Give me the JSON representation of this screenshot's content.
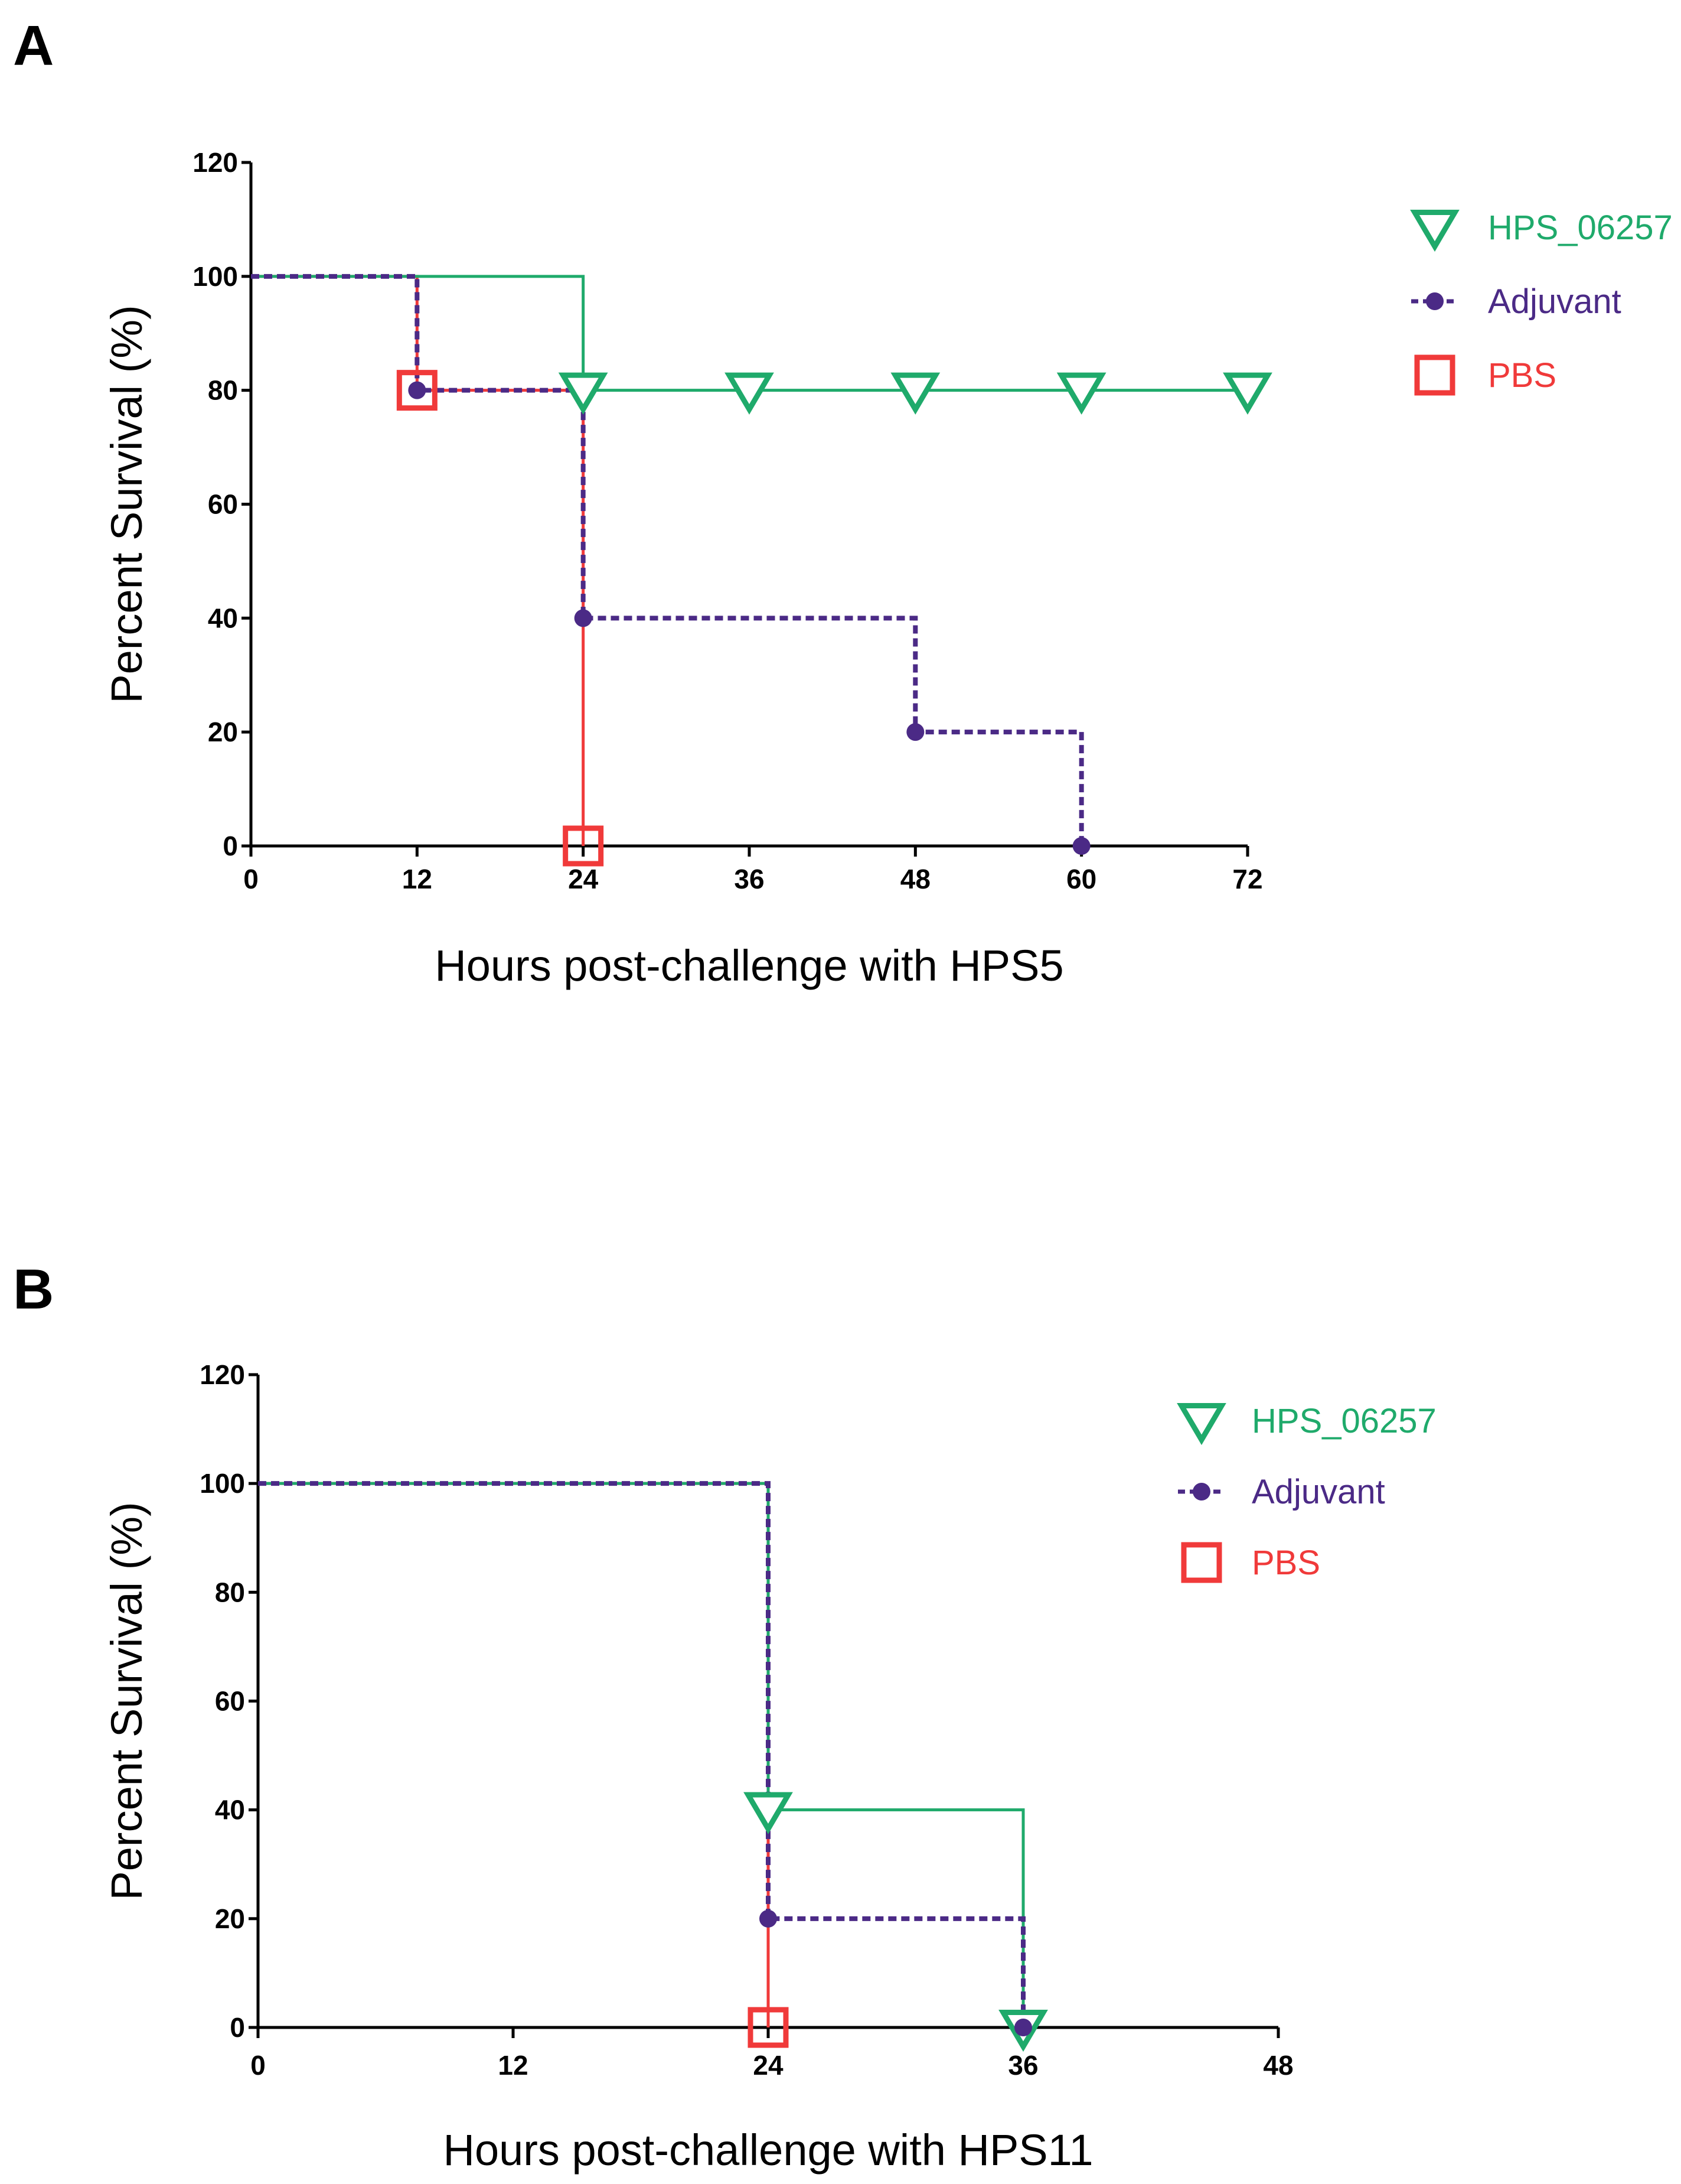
{
  "colors": {
    "hps_06257": "#1faa6b",
    "adjuvant": "#4b2a86",
    "pbs": "#f03a3a",
    "adjuvant_pbs_overlap": "#a0307a"
  },
  "chart_data": [
    {
      "panel": "A",
      "type": "line",
      "subtype": "kaplan-meier step",
      "xlabel": "Hours post-challenge with HPS5",
      "ylabel": "Percent Survival (%)",
      "xlim": [
        0,
        72
      ],
      "ylim": [
        0,
        120
      ],
      "xticks": [
        0,
        12,
        24,
        36,
        48,
        60,
        72
      ],
      "yticks": [
        0,
        20,
        40,
        60,
        80,
        100,
        120
      ],
      "legend_position": "top-right",
      "series": [
        {
          "name": "HPS_06257",
          "line_style": "solid",
          "marker": "triangle-down-open",
          "steps": [
            [
              0,
              100
            ],
            [
              24,
              80
            ],
            [
              72,
              80
            ]
          ],
          "markers": [
            [
              24,
              80
            ],
            [
              36,
              80
            ],
            [
              48,
              80
            ],
            [
              60,
              80
            ],
            [
              72,
              80
            ]
          ]
        },
        {
          "name": "Adjuvant",
          "line_style": "dashed",
          "marker": "circle-filled",
          "steps": [
            [
              0,
              100
            ],
            [
              12,
              80
            ],
            [
              24,
              40
            ],
            [
              48,
              20
            ],
            [
              60,
              0
            ]
          ],
          "markers": [
            [
              12,
              80
            ],
            [
              24,
              40
            ],
            [
              48,
              20
            ],
            [
              60,
              0
            ]
          ]
        },
        {
          "name": "PBS",
          "line_style": "solid",
          "marker": "square-open",
          "steps": [
            [
              0,
              100
            ],
            [
              12,
              80
            ],
            [
              24,
              0
            ]
          ],
          "markers": [
            [
              12,
              80
            ],
            [
              24,
              0
            ]
          ]
        }
      ]
    },
    {
      "panel": "B",
      "type": "line",
      "subtype": "kaplan-meier step",
      "xlabel": "Hours post-challenge with HPS11",
      "ylabel": "Percent Survival (%)",
      "xlim": [
        0,
        48
      ],
      "ylim": [
        0,
        120
      ],
      "xticks": [
        0,
        12,
        24,
        36,
        48
      ],
      "yticks": [
        0,
        20,
        40,
        60,
        80,
        100,
        120
      ],
      "legend_position": "top-right",
      "series": [
        {
          "name": "HPS_06257",
          "line_style": "solid",
          "marker": "triangle-down-open",
          "steps": [
            [
              0,
              100
            ],
            [
              24,
              40
            ],
            [
              36,
              0
            ]
          ],
          "markers": [
            [
              24,
              40
            ],
            [
              36,
              0
            ]
          ]
        },
        {
          "name": "Adjuvant",
          "line_style": "dashed",
          "marker": "circle-filled",
          "steps": [
            [
              0,
              100
            ],
            [
              24,
              20
            ],
            [
              36,
              0
            ]
          ],
          "markers": [
            [
              24,
              20
            ],
            [
              36,
              0
            ]
          ]
        },
        {
          "name": "PBS",
          "line_style": "solid",
          "marker": "square-open",
          "steps": [
            [
              0,
              100
            ],
            [
              24,
              0
            ]
          ],
          "markers": [
            [
              24,
              0
            ]
          ]
        }
      ]
    }
  ]
}
